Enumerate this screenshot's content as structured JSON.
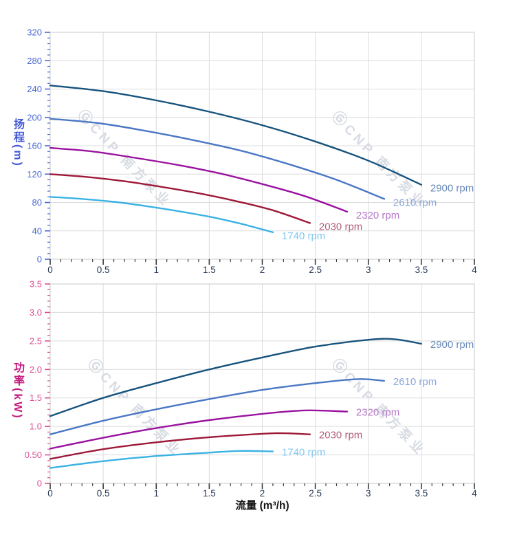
{
  "page": {
    "background": "#ffffff"
  },
  "watermark": {
    "logo": "Ⓖ",
    "text": "CNP 南方泵业",
    "color": "#d5dae2"
  },
  "x_axis": {
    "label": "流量 (m³/h)",
    "label_color": "#141414",
    "tick_label_color": "#243755",
    "tick_color": "#3a3a3a",
    "min": 0,
    "max": 4,
    "major_step": 0.5,
    "minor_step": 0.1,
    "tick_labels": [
      "0",
      "0.5",
      "1",
      "1.5",
      "2",
      "2.5",
      "3",
      "3.5",
      "4"
    ]
  },
  "chart_data": [
    {
      "type": "line",
      "id": "head",
      "title": "",
      "ylabel": "扬程(m)",
      "ylabel_color": "#4257d5",
      "tick_color": "#4b6ad6",
      "grid": true,
      "legend_position": "curve-end",
      "ylim": [
        0,
        320
      ],
      "y_major_step": 40,
      "y_minor_step": 8,
      "y_tick_labels": [
        "0",
        "40",
        "80",
        "120",
        "160",
        "200",
        "240",
        "280",
        "320"
      ],
      "xlim": [
        0,
        4
      ],
      "series": [
        {
          "name": "2900 rpm",
          "color": "#17537d",
          "label_color": "#6688b8",
          "points": [
            [
              0,
              245
            ],
            [
              0.5,
              237
            ],
            [
              1,
              224
            ],
            [
              1.5,
              208
            ],
            [
              2,
              189
            ],
            [
              2.5,
              166
            ],
            [
              3,
              139
            ],
            [
              3.5,
              105
            ]
          ]
        },
        {
          "name": "2610 rpm",
          "color": "#4a77c4",
          "label_color": "#89a6da",
          "points": [
            [
              0,
              198
            ],
            [
              0.45,
              192
            ],
            [
              0.9,
              181
            ],
            [
              1.35,
              168
            ],
            [
              1.8,
              153
            ],
            [
              2.25,
              134
            ],
            [
              2.7,
              112
            ],
            [
              3.15,
              85
            ]
          ]
        },
        {
          "name": "2320 rpm",
          "color": "#99119f",
          "label_color": "#b678c8",
          "points": [
            [
              0,
              157
            ],
            [
              0.4,
              152
            ],
            [
              0.8,
              143
            ],
            [
              1.2,
              133
            ],
            [
              1.6,
              121
            ],
            [
              2,
              106
            ],
            [
              2.4,
              89
            ],
            [
              2.8,
              67
            ]
          ]
        },
        {
          "name": "2030 rpm",
          "color": "#9e1838",
          "label_color": "#b26079",
          "points": [
            [
              0,
              120
            ],
            [
              0.35,
              116
            ],
            [
              0.7,
              110
            ],
            [
              1.05,
              102
            ],
            [
              1.4,
              93
            ],
            [
              1.75,
              82
            ],
            [
              2.1,
              69
            ],
            [
              2.45,
              51
            ]
          ]
        },
        {
          "name": "1740 rpm",
          "color": "#3ab2e4",
          "label_color": "#82c8ef",
          "points": [
            [
              0,
              88
            ],
            [
              0.3,
              85
            ],
            [
              0.6,
              81
            ],
            [
              0.9,
              75
            ],
            [
              1.2,
              68
            ],
            [
              1.5,
              60
            ],
            [
              1.8,
              50
            ],
            [
              2.1,
              38
            ]
          ]
        }
      ]
    },
    {
      "type": "line",
      "id": "power",
      "title": "",
      "ylabel": "功率(kW)",
      "ylabel_color": "#c41a7f",
      "tick_color": "#dc4f94",
      "grid": true,
      "legend_position": "curve-end",
      "ylim": [
        0,
        3.5
      ],
      "y_major_step": 0.5,
      "y_minor_step": 0.1,
      "y_tick_labels": [
        "0",
        "0.50",
        "1.0",
        "1.5",
        "2.0",
        "2.5",
        "3.0",
        "3.5"
      ],
      "xlim": [
        0,
        4
      ],
      "series": [
        {
          "name": "2900 rpm",
          "color": "#17537d",
          "label_color": "#6688b8",
          "points": [
            [
              0,
              1.18
            ],
            [
              0.5,
              1.5
            ],
            [
              1,
              1.76
            ],
            [
              1.5,
              2.0
            ],
            [
              2,
              2.21
            ],
            [
              2.5,
              2.4
            ],
            [
              3,
              2.52
            ],
            [
              3.25,
              2.53
            ],
            [
              3.5,
              2.45
            ]
          ]
        },
        {
          "name": "2610 rpm",
          "color": "#4a77c4",
          "label_color": "#89a6da",
          "points": [
            [
              0,
              0.86
            ],
            [
              0.5,
              1.1
            ],
            [
              1,
              1.3
            ],
            [
              1.5,
              1.48
            ],
            [
              2,
              1.64
            ],
            [
              2.5,
              1.76
            ],
            [
              2.9,
              1.83
            ],
            [
              3.15,
              1.8
            ]
          ]
        },
        {
          "name": "2320 rpm",
          "color": "#99119f",
          "label_color": "#b678c8",
          "points": [
            [
              0,
              0.61
            ],
            [
              0.5,
              0.8
            ],
            [
              1,
              0.97
            ],
            [
              1.5,
              1.11
            ],
            [
              2,
              1.22
            ],
            [
              2.4,
              1.28
            ],
            [
              2.8,
              1.26
            ]
          ]
        },
        {
          "name": "2030 rpm",
          "color": "#9e1838",
          "label_color": "#b26079",
          "points": [
            [
              0,
              0.43
            ],
            [
              0.5,
              0.6
            ],
            [
              1,
              0.72
            ],
            [
              1.5,
              0.81
            ],
            [
              2,
              0.87
            ],
            [
              2.2,
              0.88
            ],
            [
              2.45,
              0.86
            ]
          ]
        },
        {
          "name": "1740 rpm",
          "color": "#3ab2e4",
          "label_color": "#82c8ef",
          "points": [
            [
              0,
              0.27
            ],
            [
              0.5,
              0.39
            ],
            [
              1,
              0.48
            ],
            [
              1.5,
              0.54
            ],
            [
              1.8,
              0.57
            ],
            [
              2.1,
              0.56
            ]
          ]
        }
      ]
    }
  ]
}
